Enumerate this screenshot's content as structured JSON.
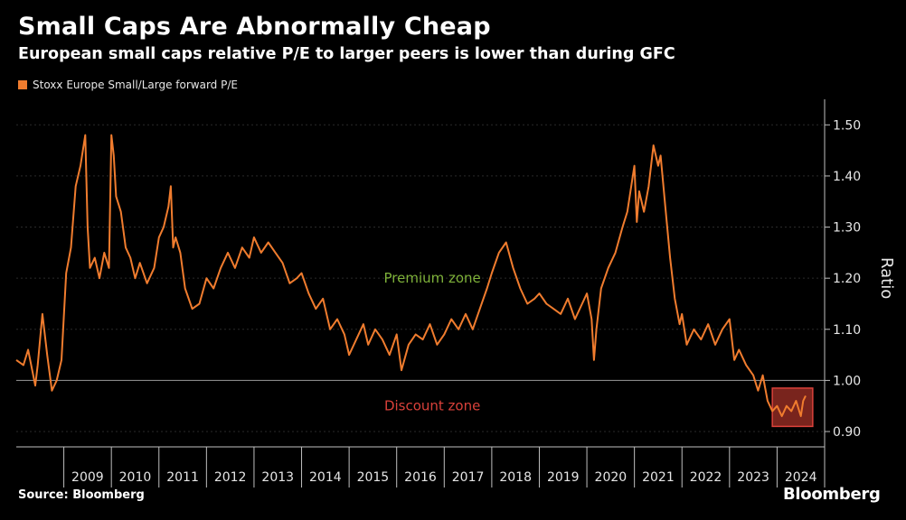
{
  "header": {
    "title": "Small Caps Are Abnormally Cheap",
    "subtitle": "European small caps relative P/E to larger peers is lower than during GFC"
  },
  "footer": {
    "source": "Source: Bloomberg",
    "brand": "Bloomberg"
  },
  "colors": {
    "background": "#000000",
    "series": "#f07c2e",
    "premium": "#7fb23a",
    "discount": "#d9413a",
    "highlight_fill": "#8e2a22",
    "highlight_stroke": "#d9413a"
  },
  "chart_data": {
    "type": "line",
    "title": "Small Caps Are Abnormally Cheap",
    "ylabel": "Ratio",
    "xlabel": "",
    "ylim": [
      0.87,
      1.55
    ],
    "xlim": [
      2008.0,
      2025.0
    ],
    "yticks": [
      "0.90",
      "1.00",
      "1.10",
      "1.20",
      "1.30",
      "1.40",
      "1.50"
    ],
    "yticks_values": [
      0.9,
      1.0,
      1.1,
      1.2,
      1.3,
      1.4,
      1.5
    ],
    "xticks": [
      "2009",
      "2010",
      "2011",
      "2012",
      "2013",
      "2014",
      "2015",
      "2016",
      "2017",
      "2018",
      "2019",
      "2020",
      "2021",
      "2022",
      "2023",
      "2024"
    ],
    "reference_line": 1.0,
    "legend": [
      "Stoxx Europe Small/Large forward P/E"
    ],
    "annotations": {
      "premium": "Premium zone",
      "discount": "Discount zone"
    },
    "highlight": {
      "x_from": 2023.9,
      "x_to": 2024.75,
      "y_from": 0.91,
      "y_to": 0.985
    },
    "series": [
      {
        "name": "Stoxx Europe Small/Large forward P/E",
        "x": [
          2008.0,
          2008.15,
          2008.25,
          2008.4,
          2008.45,
          2008.55,
          2008.65,
          2008.75,
          2008.85,
          2008.95,
          2009.05,
          2009.15,
          2009.25,
          2009.35,
          2009.45,
          2009.5,
          2009.55,
          2009.65,
          2009.75,
          2009.85,
          2009.95,
          2010.0,
          2010.05,
          2010.1,
          2010.2,
          2010.3,
          2010.4,
          2010.5,
          2010.6,
          2010.75,
          2010.9,
          2011.0,
          2011.1,
          2011.2,
          2011.25,
          2011.3,
          2011.35,
          2011.45,
          2011.55,
          2011.7,
          2011.85,
          2012.0,
          2012.15,
          2012.3,
          2012.45,
          2012.6,
          2012.75,
          2012.9,
          2013.0,
          2013.15,
          2013.3,
          2013.45,
          2013.6,
          2013.75,
          2013.9,
          2014.0,
          2014.15,
          2014.3,
          2014.45,
          2014.6,
          2014.75,
          2014.9,
          2015.0,
          2015.15,
          2015.3,
          2015.4,
          2015.55,
          2015.7,
          2015.85,
          2016.0,
          2016.1,
          2016.25,
          2016.4,
          2016.55,
          2016.7,
          2016.85,
          2017.0,
          2017.15,
          2017.3,
          2017.45,
          2017.6,
          2017.75,
          2017.9,
          2018.0,
          2018.15,
          2018.3,
          2018.45,
          2018.6,
          2018.75,
          2018.9,
          2019.0,
          2019.15,
          2019.3,
          2019.45,
          2019.6,
          2019.75,
          2019.9,
          2020.0,
          2020.1,
          2020.15,
          2020.2,
          2020.3,
          2020.45,
          2020.6,
          2020.75,
          2020.85,
          2020.95,
          2021.0,
          2021.05,
          2021.1,
          2021.2,
          2021.3,
          2021.4,
          2021.5,
          2021.55,
          2021.65,
          2021.75,
          2021.85,
          2021.95,
          2022.0,
          2022.1,
          2022.25,
          2022.4,
          2022.55,
          2022.7,
          2022.85,
          2023.0,
          2023.1,
          2023.2,
          2023.35,
          2023.5,
          2023.6,
          2023.7,
          2023.8,
          2023.9,
          2024.0,
          2024.1,
          2024.2,
          2024.3,
          2024.4,
          2024.5,
          2024.55,
          2024.6
        ],
        "values": [
          1.04,
          1.03,
          1.06,
          0.99,
          1.03,
          1.13,
          1.05,
          0.98,
          1.0,
          1.04,
          1.21,
          1.26,
          1.38,
          1.42,
          1.48,
          1.3,
          1.22,
          1.24,
          1.2,
          1.25,
          1.22,
          1.48,
          1.44,
          1.36,
          1.33,
          1.26,
          1.24,
          1.2,
          1.23,
          1.19,
          1.22,
          1.28,
          1.3,
          1.34,
          1.38,
          1.26,
          1.28,
          1.25,
          1.18,
          1.14,
          1.15,
          1.2,
          1.18,
          1.22,
          1.25,
          1.22,
          1.26,
          1.24,
          1.28,
          1.25,
          1.27,
          1.25,
          1.23,
          1.19,
          1.2,
          1.21,
          1.17,
          1.14,
          1.16,
          1.1,
          1.12,
          1.09,
          1.05,
          1.08,
          1.11,
          1.07,
          1.1,
          1.08,
          1.05,
          1.09,
          1.02,
          1.07,
          1.09,
          1.08,
          1.11,
          1.07,
          1.09,
          1.12,
          1.1,
          1.13,
          1.1,
          1.14,
          1.18,
          1.21,
          1.25,
          1.27,
          1.22,
          1.18,
          1.15,
          1.16,
          1.17,
          1.15,
          1.14,
          1.13,
          1.16,
          1.12,
          1.15,
          1.17,
          1.12,
          1.04,
          1.1,
          1.18,
          1.22,
          1.25,
          1.3,
          1.33,
          1.39,
          1.42,
          1.31,
          1.37,
          1.33,
          1.38,
          1.46,
          1.42,
          1.44,
          1.34,
          1.24,
          1.16,
          1.11,
          1.13,
          1.07,
          1.1,
          1.08,
          1.11,
          1.07,
          1.1,
          1.12,
          1.04,
          1.06,
          1.03,
          1.01,
          0.98,
          1.01,
          0.96,
          0.94,
          0.95,
          0.93,
          0.95,
          0.94,
          0.96,
          0.93,
          0.96,
          0.97
        ]
      }
    ]
  }
}
